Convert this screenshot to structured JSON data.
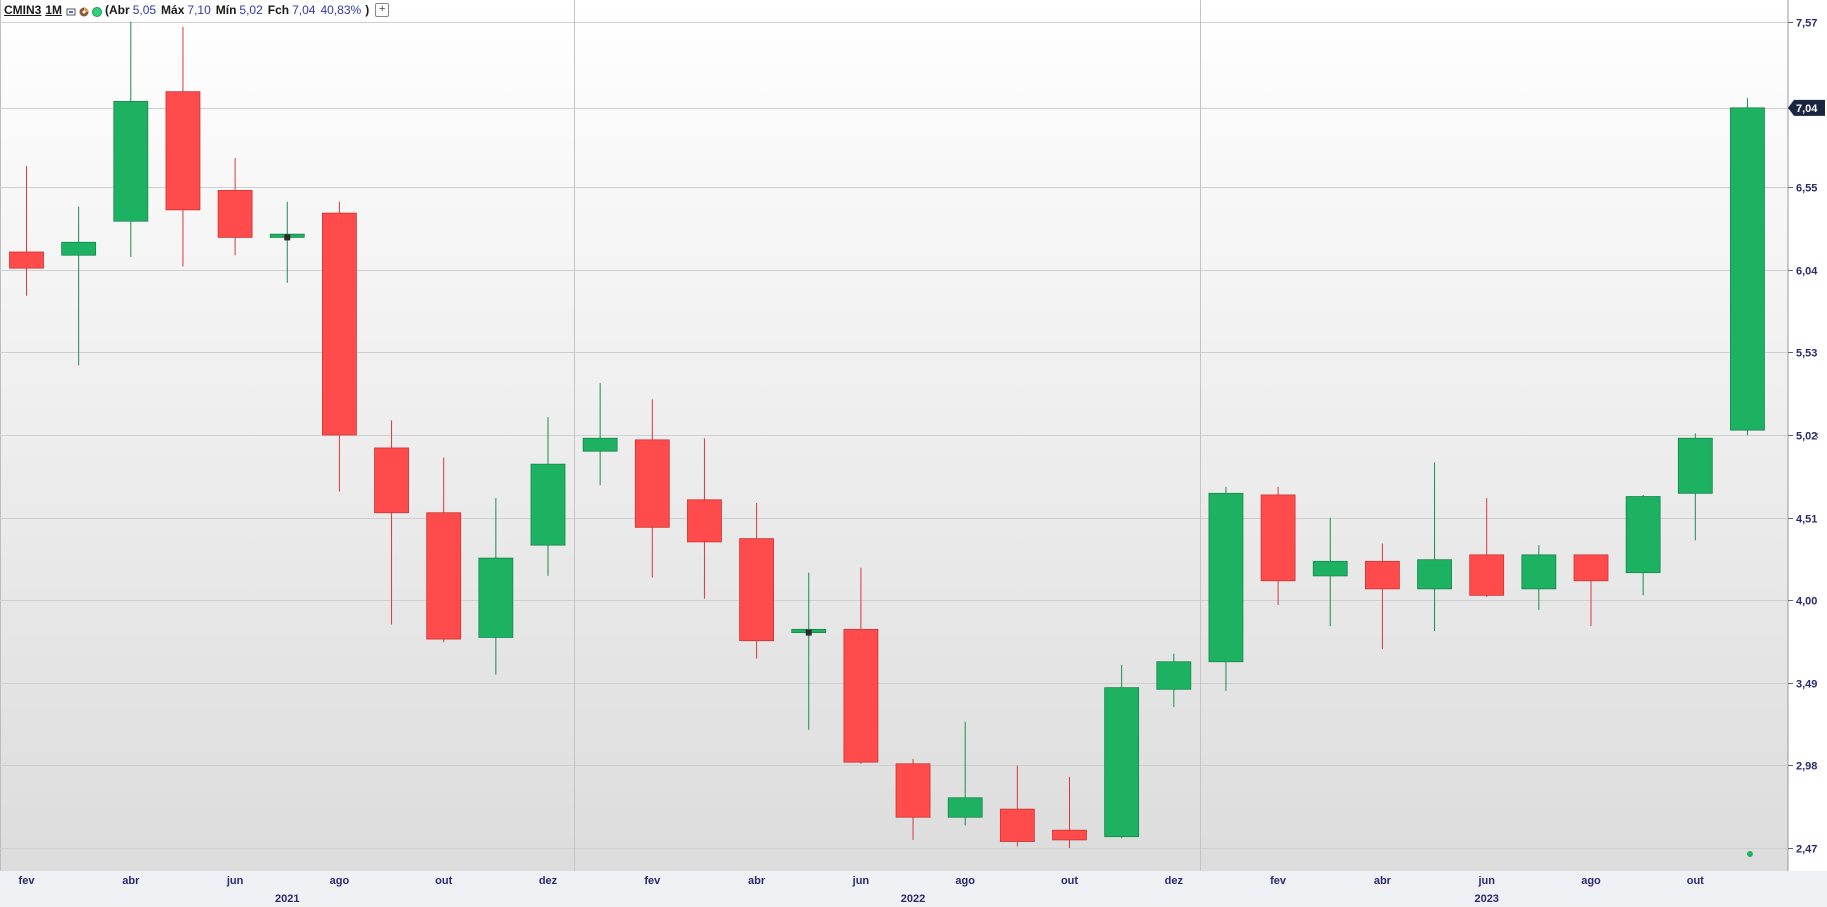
{
  "legend": {
    "symbol": "CMIN3",
    "timeframe": "1M",
    "open_label": "(Abr",
    "open_value": "5,05",
    "high_label": "Máx",
    "high_value": "7,10",
    "low_label": "Mín",
    "low_value": "5,02",
    "close_label": "Fch",
    "close_value": "7,04",
    "change": "40,83%",
    "close_paren": ")",
    "add_button": "+",
    "icons": [
      "camera-icon",
      "color-wheel-icon",
      "status-dot-icon"
    ]
  },
  "colors": {
    "up": "#1db262",
    "down": "#ff4b4b",
    "axis_text": "#2a2a6e",
    "price_tag_bg": "#1a2540"
  },
  "last_price_tag": "7,04",
  "collapse_arrow": "‹",
  "chart_data": {
    "type": "candlestick",
    "timeframe": "monthly",
    "y_ticks": [
      "7,57",
      "7,04",
      "6,55",
      "6,04",
      "5,53",
      "5,02",
      "4,51",
      "4,00",
      "3,49",
      "2,98",
      "2,47"
    ],
    "y_tick_values": [
      7.57,
      7.04,
      6.55,
      6.04,
      5.53,
      5.02,
      4.51,
      4.0,
      3.49,
      2.98,
      2.47
    ],
    "x_month_labels": [
      {
        "label": "fev",
        "index": 0
      },
      {
        "label": "abr",
        "index": 2
      },
      {
        "label": "jun",
        "index": 4
      },
      {
        "label": "ago",
        "index": 6
      },
      {
        "label": "out",
        "index": 8
      },
      {
        "label": "dez",
        "index": 10
      },
      {
        "label": "fev",
        "index": 12
      },
      {
        "label": "abr",
        "index": 14
      },
      {
        "label": "jun",
        "index": 16
      },
      {
        "label": "ago",
        "index": 18
      },
      {
        "label": "out",
        "index": 20
      },
      {
        "label": "dez",
        "index": 22
      },
      {
        "label": "fev",
        "index": 24
      },
      {
        "label": "abr",
        "index": 26
      },
      {
        "label": "jun",
        "index": 28
      },
      {
        "label": "ago",
        "index": 30
      },
      {
        "label": "out",
        "index": 32
      }
    ],
    "x_year_labels": [
      {
        "label": "2021",
        "center_index": 5
      },
      {
        "label": "2022",
        "center_index": 17
      },
      {
        "label": "2023",
        "center_index": 28
      }
    ],
    "year_separators_before_index": [
      11,
      23
    ],
    "candles": [
      {
        "month": "2021-02",
        "open": 6.15,
        "high": 6.68,
        "low": 5.88,
        "close": 6.05
      },
      {
        "month": "2021-03",
        "open": 6.13,
        "high": 6.43,
        "low": 5.45,
        "close": 6.21
      },
      {
        "month": "2021-04",
        "open": 6.34,
        "high": 7.57,
        "low": 6.12,
        "close": 7.08
      },
      {
        "month": "2021-05",
        "open": 7.14,
        "high": 7.54,
        "low": 6.06,
        "close": 6.41
      },
      {
        "month": "2021-06",
        "open": 6.53,
        "high": 6.73,
        "low": 6.13,
        "close": 6.24
      },
      {
        "month": "2021-07",
        "open": 6.24,
        "high": 6.46,
        "low": 5.96,
        "close": 6.26
      },
      {
        "month": "2021-08",
        "open": 6.39,
        "high": 6.46,
        "low": 4.67,
        "close": 5.02
      },
      {
        "month": "2021-09",
        "open": 4.94,
        "high": 5.11,
        "low": 3.85,
        "close": 4.54
      },
      {
        "month": "2021-10",
        "open": 4.54,
        "high": 4.88,
        "low": 3.74,
        "close": 3.76
      },
      {
        "month": "2021-11",
        "open": 3.77,
        "high": 4.63,
        "low": 3.54,
        "close": 4.26
      },
      {
        "month": "2021-12",
        "open": 4.34,
        "high": 5.13,
        "low": 4.15,
        "close": 4.84
      },
      {
        "month": "2022-01",
        "open": 4.92,
        "high": 5.34,
        "low": 4.71,
        "close": 5.0
      },
      {
        "month": "2022-02",
        "open": 4.99,
        "high": 5.24,
        "low": 4.14,
        "close": 4.45
      },
      {
        "month": "2022-03",
        "open": 4.62,
        "high": 5.0,
        "low": 4.01,
        "close": 4.36
      },
      {
        "month": "2022-04",
        "open": 4.38,
        "high": 4.6,
        "low": 3.64,
        "close": 3.75
      },
      {
        "month": "2022-05",
        "open": 3.8,
        "high": 4.17,
        "low": 3.2,
        "close": 3.82
      },
      {
        "month": "2022-06",
        "open": 3.82,
        "high": 4.2,
        "low": 2.99,
        "close": 3.0
      },
      {
        "month": "2022-07",
        "open": 2.99,
        "high": 3.02,
        "low": 2.52,
        "close": 2.66
      },
      {
        "month": "2022-08",
        "open": 2.66,
        "high": 3.25,
        "low": 2.61,
        "close": 2.78
      },
      {
        "month": "2022-09",
        "open": 2.71,
        "high": 2.98,
        "low": 2.48,
        "close": 2.51
      },
      {
        "month": "2022-10",
        "open": 2.58,
        "high": 2.91,
        "low": 2.47,
        "close": 2.52
      },
      {
        "month": "2022-11",
        "open": 2.54,
        "high": 3.6,
        "low": 2.53,
        "close": 3.46
      },
      {
        "month": "2022-12",
        "open": 3.45,
        "high": 3.67,
        "low": 3.34,
        "close": 3.62
      },
      {
        "month": "2023-01",
        "open": 3.62,
        "high": 4.7,
        "low": 3.44,
        "close": 4.66
      },
      {
        "month": "2023-02",
        "open": 4.65,
        "high": 4.7,
        "low": 3.97,
        "close": 4.12
      },
      {
        "month": "2023-03",
        "open": 4.15,
        "high": 4.51,
        "low": 3.84,
        "close": 4.24
      },
      {
        "month": "2023-04",
        "open": 4.24,
        "high": 4.35,
        "low": 3.7,
        "close": 4.07
      },
      {
        "month": "2023-05",
        "open": 4.07,
        "high": 4.85,
        "low": 3.81,
        "close": 4.25
      },
      {
        "month": "2023-06",
        "open": 4.28,
        "high": 4.63,
        "low": 4.02,
        "close": 4.03
      },
      {
        "month": "2023-07",
        "open": 4.07,
        "high": 4.34,
        "low": 3.94,
        "close": 4.28
      },
      {
        "month": "2023-08",
        "open": 4.28,
        "high": 4.28,
        "low": 3.84,
        "close": 4.12
      },
      {
        "month": "2023-09",
        "open": 4.17,
        "high": 4.65,
        "low": 4.03,
        "close": 4.64
      },
      {
        "month": "2023-10",
        "open": 4.66,
        "high": 5.03,
        "low": 4.37,
        "close": 5.0
      },
      {
        "month": "2023-11",
        "open": 5.05,
        "high": 7.1,
        "low": 5.02,
        "close": 7.04
      }
    ]
  }
}
